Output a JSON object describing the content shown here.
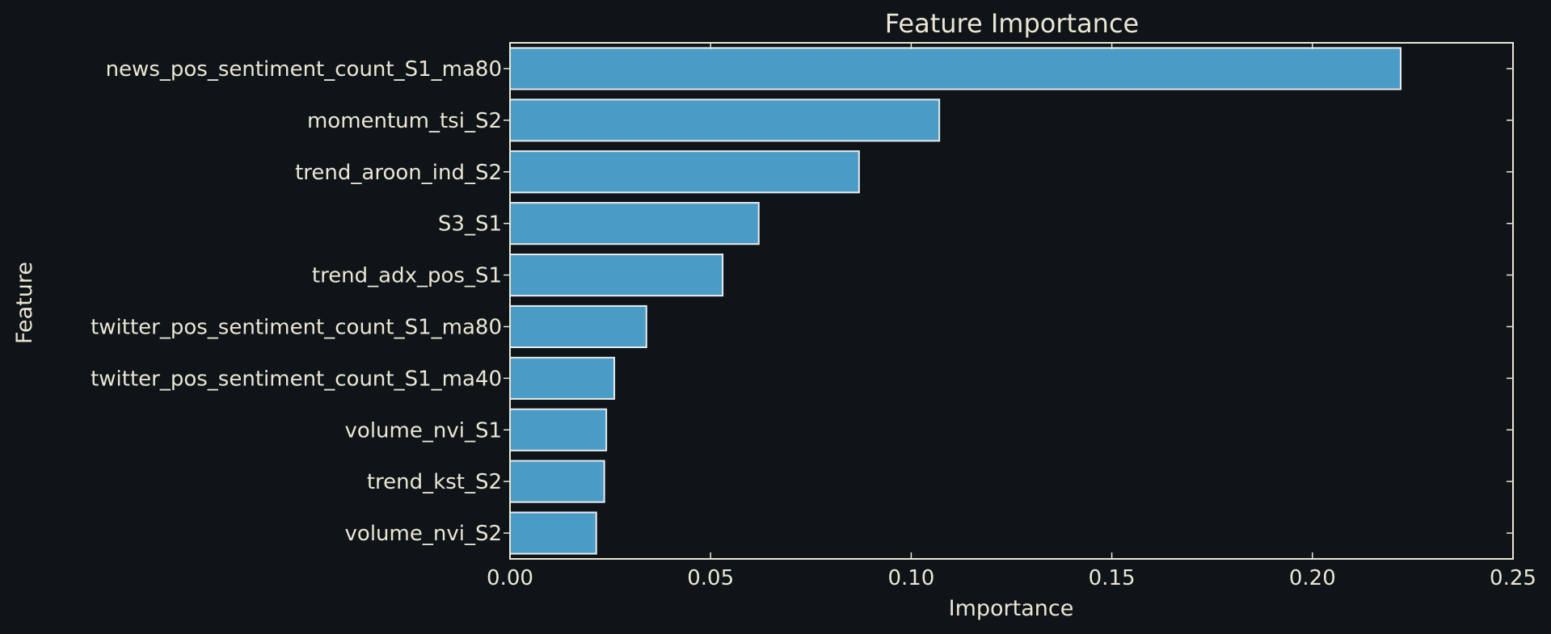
{
  "chart_data": {
    "type": "bar",
    "orientation": "horizontal",
    "title": "Feature Importance",
    "xlabel": "Importance",
    "ylabel": "Feature",
    "xlim": [
      0,
      0.25
    ],
    "xticks": [
      "0.00",
      "0.05",
      "0.10",
      "0.15",
      "0.20",
      "0.25"
    ],
    "categories": [
      "news_pos_sentiment_count_S1_ma80",
      "momentum_tsi_S2",
      "trend_aroon_ind_S2",
      "S3_S1",
      "trend_adx_pos_S1",
      "twitter_pos_sentiment_count_S1_ma80",
      "twitter_pos_sentiment_count_S1_ma40",
      "volume_nvi_S1",
      "trend_kst_S2",
      "volume_nvi_S2"
    ],
    "values": [
      0.222,
      0.107,
      0.087,
      0.062,
      0.053,
      0.034,
      0.026,
      0.024,
      0.0235,
      0.0215
    ],
    "grid": false,
    "legend": "none",
    "colors": {
      "background": "#0f1419",
      "bar_fill": "#4a9cc7",
      "bar_edge": "#e8ecef",
      "axes": "#ece6d4",
      "text": "#ece6d4"
    }
  }
}
